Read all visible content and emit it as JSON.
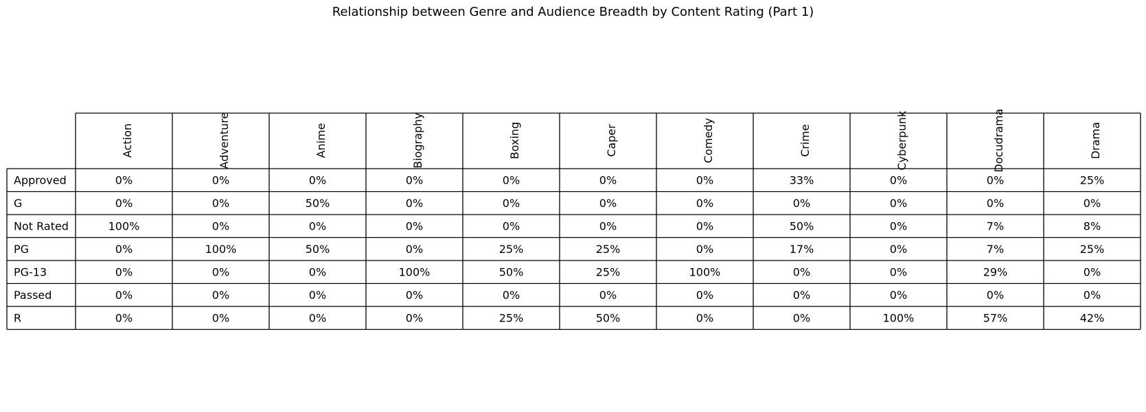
{
  "chart_data": {
    "type": "table",
    "title": "Relationship between Genre and Audience Breadth by Content Rating (Part 1)",
    "columns": [
      "Action",
      "Adventure",
      "Anime",
      "Biography",
      "Boxing",
      "Caper",
      "Comedy",
      "Crime",
      "Cyberpunk",
      "Docudrama",
      "Drama"
    ],
    "rows": [
      {
        "label": "Approved",
        "values": [
          "0%",
          "0%",
          "0%",
          "0%",
          "0%",
          "0%",
          "0%",
          "33%",
          "0%",
          "0%",
          "25%"
        ]
      },
      {
        "label": "G",
        "values": [
          "0%",
          "0%",
          "50%",
          "0%",
          "0%",
          "0%",
          "0%",
          "0%",
          "0%",
          "0%",
          "0%"
        ]
      },
      {
        "label": "Not Rated",
        "values": [
          "100%",
          "0%",
          "0%",
          "0%",
          "0%",
          "0%",
          "0%",
          "50%",
          "0%",
          "7%",
          "8%"
        ]
      },
      {
        "label": "PG",
        "values": [
          "0%",
          "100%",
          "50%",
          "0%",
          "25%",
          "25%",
          "0%",
          "17%",
          "0%",
          "7%",
          "25%"
        ]
      },
      {
        "label": "PG-13",
        "values": [
          "0%",
          "0%",
          "0%",
          "100%",
          "50%",
          "25%",
          "100%",
          "0%",
          "0%",
          "29%",
          "0%"
        ]
      },
      {
        "label": "Passed",
        "values": [
          "0%",
          "0%",
          "0%",
          "0%",
          "0%",
          "0%",
          "0%",
          "0%",
          "0%",
          "0%",
          "0%"
        ]
      },
      {
        "label": "R",
        "values": [
          "0%",
          "0%",
          "0%",
          "0%",
          "25%",
          "50%",
          "0%",
          "0%",
          "100%",
          "57%",
          "42%"
        ]
      }
    ]
  },
  "colors": {
    "border": "#000000",
    "text": "#000000",
    "background": "#ffffff"
  }
}
